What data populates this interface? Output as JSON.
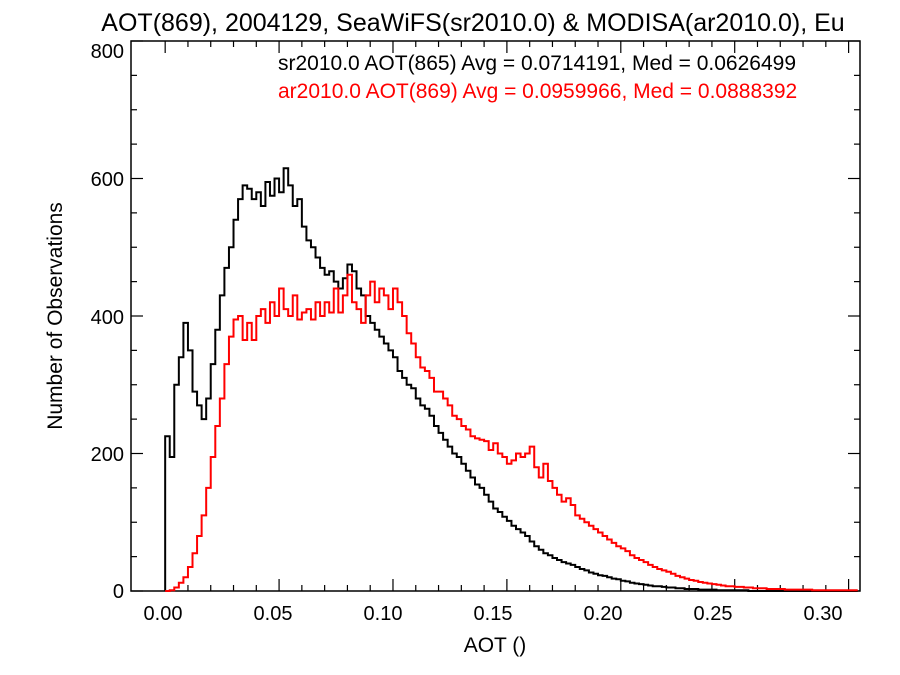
{
  "chart_data": {
    "type": "line",
    "title": "AOT(869), 2004129, SeaWiFS(sr2010.0) & MODISA(ar2010.0), Eu",
    "xlabel": "AOT ()",
    "ylabel": "Number of Observations",
    "xlim": [
      -0.015,
      0.305
    ],
    "ylim": [
      0,
      800
    ],
    "xticks": [
      0.0,
      0.05,
      0.1,
      0.15,
      0.2,
      0.25,
      0.3
    ],
    "xtick_labels": [
      "0.00",
      "0.05",
      "0.10",
      "0.15",
      "0.20",
      "0.25",
      "0.30"
    ],
    "yticks": [
      0,
      200,
      400,
      600,
      800
    ],
    "ytick_labels": [
      "0",
      "200",
      "400",
      "600",
      "800"
    ],
    "legend_placement": "top-right",
    "series": [
      {
        "name": "sr2010.0 AOT(865) Avg = 0.0714191, Med = 0.0626499",
        "color": "#000000",
        "x": [
          0.0,
          0.002,
          0.004,
          0.006,
          0.008,
          0.01,
          0.012,
          0.014,
          0.016,
          0.018,
          0.02,
          0.022,
          0.024,
          0.026,
          0.028,
          0.03,
          0.032,
          0.034,
          0.036,
          0.038,
          0.04,
          0.042,
          0.044,
          0.046,
          0.048,
          0.05,
          0.052,
          0.054,
          0.056,
          0.058,
          0.06,
          0.062,
          0.064,
          0.066,
          0.068,
          0.07,
          0.072,
          0.074,
          0.076,
          0.078,
          0.08,
          0.082,
          0.084,
          0.086,
          0.088,
          0.09,
          0.092,
          0.094,
          0.096,
          0.098,
          0.1,
          0.102,
          0.104,
          0.106,
          0.108,
          0.11,
          0.112,
          0.114,
          0.116,
          0.118,
          0.12,
          0.122,
          0.124,
          0.126,
          0.128,
          0.13,
          0.132,
          0.134,
          0.136,
          0.138,
          0.14,
          0.142,
          0.144,
          0.146,
          0.148,
          0.15,
          0.152,
          0.154,
          0.156,
          0.158,
          0.16,
          0.162,
          0.164,
          0.166,
          0.168,
          0.17,
          0.172,
          0.174,
          0.176,
          0.178,
          0.18,
          0.182,
          0.184,
          0.186,
          0.188,
          0.19,
          0.192,
          0.194,
          0.196,
          0.198,
          0.2,
          0.202,
          0.204,
          0.206,
          0.208,
          0.21,
          0.212,
          0.214,
          0.216,
          0.218,
          0.22,
          0.222,
          0.224,
          0.226,
          0.228,
          0.23,
          0.232,
          0.234,
          0.236,
          0.238,
          0.24,
          0.242,
          0.244,
          0.246,
          0.248,
          0.25,
          0.252,
          0.254,
          0.256,
          0.258,
          0.26,
          0.262,
          0.264,
          0.266,
          0.268,
          0.27,
          0.272,
          0.274,
          0.276,
          0.278,
          0.28,
          0.282,
          0.284,
          0.286,
          0.288,
          0.29,
          0.292,
          0.294,
          0.296,
          0.298,
          0.3,
          0.302
        ],
        "y": [
          225,
          195,
          300,
          340,
          390,
          350,
          290,
          270,
          250,
          280,
          330,
          380,
          430,
          470,
          500,
          540,
          570,
          590,
          585,
          570,
          580,
          560,
          595,
          575,
          600,
          580,
          615,
          590,
          560,
          570,
          530,
          510,
          500,
          485,
          470,
          460,
          465,
          450,
          440,
          455,
          475,
          465,
          440,
          430,
          400,
          390,
          380,
          370,
          360,
          350,
          340,
          320,
          310,
          300,
          295,
          280,
          270,
          265,
          255,
          240,
          230,
          220,
          210,
          200,
          195,
          185,
          175,
          165,
          155,
          150,
          140,
          130,
          120,
          115,
          108,
          102,
          95,
          90,
          85,
          80,
          72,
          65,
          60,
          55,
          52,
          48,
          45,
          42,
          40,
          38,
          35,
          32,
          30,
          27,
          25,
          23,
          22,
          20,
          18,
          17,
          15,
          14,
          12,
          11,
          10,
          9,
          8,
          7,
          7,
          6,
          5,
          5,
          4,
          4,
          3,
          3,
          3,
          2,
          2,
          2,
          2,
          1,
          1,
          1,
          1,
          1,
          1,
          1,
          0,
          0,
          0,
          0,
          0,
          0,
          0,
          0,
          0,
          0,
          0,
          0,
          0,
          0,
          0,
          0,
          0,
          0,
          0,
          0,
          0,
          0,
          0,
          0
        ]
      },
      {
        "name": "ar2010.0 AOT(869) Avg = 0.0959966, Med = 0.0888392",
        "color": "#ff0000",
        "x": [
          0.0,
          0.002,
          0.004,
          0.006,
          0.008,
          0.01,
          0.012,
          0.014,
          0.016,
          0.018,
          0.02,
          0.022,
          0.024,
          0.026,
          0.028,
          0.03,
          0.032,
          0.034,
          0.036,
          0.038,
          0.04,
          0.042,
          0.044,
          0.046,
          0.048,
          0.05,
          0.052,
          0.054,
          0.056,
          0.058,
          0.06,
          0.062,
          0.064,
          0.066,
          0.068,
          0.07,
          0.072,
          0.074,
          0.076,
          0.078,
          0.08,
          0.082,
          0.084,
          0.086,
          0.088,
          0.09,
          0.092,
          0.094,
          0.096,
          0.098,
          0.1,
          0.102,
          0.104,
          0.106,
          0.108,
          0.11,
          0.112,
          0.114,
          0.116,
          0.118,
          0.12,
          0.122,
          0.124,
          0.126,
          0.128,
          0.13,
          0.132,
          0.134,
          0.136,
          0.138,
          0.14,
          0.142,
          0.144,
          0.146,
          0.148,
          0.15,
          0.152,
          0.154,
          0.156,
          0.158,
          0.16,
          0.162,
          0.164,
          0.166,
          0.168,
          0.17,
          0.172,
          0.174,
          0.176,
          0.178,
          0.18,
          0.182,
          0.184,
          0.186,
          0.188,
          0.19,
          0.192,
          0.194,
          0.196,
          0.198,
          0.2,
          0.202,
          0.204,
          0.206,
          0.208,
          0.21,
          0.212,
          0.214,
          0.216,
          0.218,
          0.22,
          0.222,
          0.224,
          0.226,
          0.228,
          0.23,
          0.232,
          0.234,
          0.236,
          0.238,
          0.24,
          0.242,
          0.244,
          0.246,
          0.248,
          0.25,
          0.252,
          0.254,
          0.256,
          0.258,
          0.26,
          0.262,
          0.264,
          0.266,
          0.268,
          0.27,
          0.272,
          0.274,
          0.276,
          0.278,
          0.28,
          0.282,
          0.284,
          0.286,
          0.288,
          0.29,
          0.292,
          0.294,
          0.296,
          0.298,
          0.3,
          0.302
        ],
        "y": [
          0,
          1,
          5,
          12,
          20,
          35,
          55,
          80,
          110,
          150,
          195,
          240,
          280,
          330,
          370,
          395,
          400,
          365,
          390,
          365,
          400,
          410,
          390,
          420,
          400,
          440,
          410,
          400,
          430,
          395,
          405,
          410,
          395,
          420,
          400,
          420,
          405,
          440,
          405,
          430,
          460,
          420,
          410,
          390,
          430,
          450,
          420,
          440,
          430,
          410,
          440,
          420,
          400,
          375,
          360,
          340,
          325,
          320,
          310,
          290,
          290,
          280,
          270,
          255,
          250,
          240,
          235,
          225,
          222,
          220,
          218,
          205,
          215,
          200,
          195,
          185,
          190,
          200,
          195,
          200,
          210,
          180,
          165,
          185,
          160,
          150,
          140,
          130,
          135,
          125,
          110,
          105,
          100,
          95,
          90,
          85,
          80,
          75,
          70,
          65,
          62,
          58,
          52,
          48,
          45,
          42,
          38,
          35,
          32,
          30,
          28,
          25,
          22,
          20,
          18,
          16,
          15,
          13,
          12,
          11,
          10,
          9,
          8,
          7,
          7,
          6,
          6,
          5,
          5,
          4,
          4,
          4,
          3,
          3,
          3,
          3,
          2,
          2,
          2,
          2,
          2,
          2,
          1,
          1,
          1,
          1,
          1,
          1,
          1,
          1,
          1,
          1
        ]
      }
    ]
  }
}
